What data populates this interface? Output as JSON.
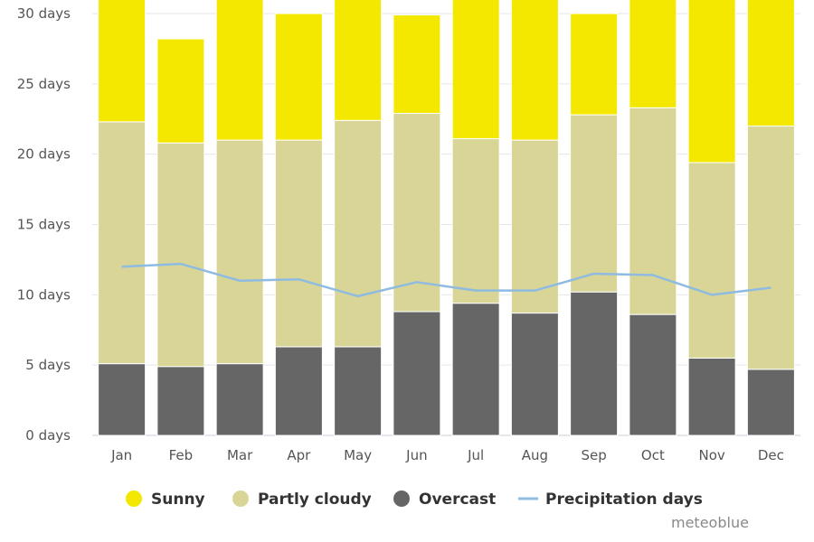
{
  "chart_data": {
    "type": "bar",
    "stacked": true,
    "categories": [
      "Jan",
      "Feb",
      "Mar",
      "Apr",
      "May",
      "Jun",
      "Jul",
      "Aug",
      "Sep",
      "Oct",
      "Nov",
      "Dec"
    ],
    "series": [
      {
        "name": "Overcast",
        "color": "#666666",
        "values": [
          5.1,
          4.9,
          5.1,
          6.3,
          6.3,
          8.8,
          9.4,
          8.7,
          10.2,
          8.6,
          5.5,
          4.7
        ]
      },
      {
        "name": "Partly cloudy",
        "color": "#d8d597",
        "values": [
          17.2,
          15.9,
          15.9,
          14.7,
          16.1,
          14.1,
          11.7,
          12.3,
          12.6,
          14.7,
          13.9,
          17.3
        ]
      },
      {
        "name": "Sunny",
        "color": "#f5e800",
        "values": [
          8.7,
          7.4,
          10.0,
          9.0,
          8.6,
          7.0,
          9.9,
          10.0,
          7.2,
          7.7,
          11.6,
          9.0
        ]
      }
    ],
    "line_series": {
      "name": "Precipitation days",
      "color": "#8fbbe0",
      "values": [
        12.0,
        12.2,
        11.0,
        11.1,
        9.9,
        10.9,
        10.3,
        10.3,
        11.5,
        11.4,
        10.0,
        10.5
      ]
    },
    "ylim": [
      0,
      30
    ],
    "yticks": [
      0,
      5,
      10,
      15,
      20,
      25,
      30
    ],
    "ytick_suffix": " days",
    "grid": true,
    "legend_position": "bottom"
  },
  "ytick_labels": [
    "0 days",
    "5 days",
    "10 days",
    "15 days",
    "20 days",
    "25 days",
    "30 days"
  ],
  "legend": [
    {
      "label": "Sunny",
      "color": "#f5e800",
      "shape": "circle"
    },
    {
      "label": "Partly cloudy",
      "color": "#d8d597",
      "shape": "circle"
    },
    {
      "label": "Overcast",
      "color": "#666666",
      "shape": "circle"
    },
    {
      "label": "Precipitation days",
      "color": "#8fbbe0",
      "shape": "line"
    }
  ],
  "credit": "meteoblue"
}
